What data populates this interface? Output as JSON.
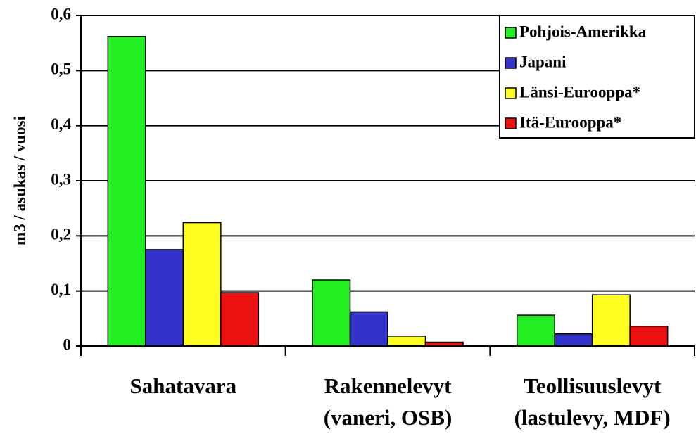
{
  "chart_data": {
    "type": "bar",
    "y_label": "m3 / asukas / vuosi",
    "categories": [
      [
        "Sahatavara"
      ],
      [
        "Rakennelevyt",
        "(vaneri, OSB)"
      ],
      [
        "Teollisuuslevyt",
        "(lastulevy, MDF)"
      ]
    ],
    "series": [
      {
        "name": "Pohjois-Amerikka",
        "color": "#22ee22",
        "values": [
          0.562,
          0.12,
          0.056
        ]
      },
      {
        "name": "Japani",
        "color": "#3333cc",
        "values": [
          0.175,
          0.062,
          0.022
        ]
      },
      {
        "name": "Länsi-Eurooppa*",
        "color": "#ffff22",
        "values": [
          0.224,
          0.018,
          0.093
        ]
      },
      {
        "name": "Itä-Eurooppa*",
        "color": "#ee1111",
        "values": [
          0.097,
          0.007,
          0.036
        ]
      }
    ],
    "ylim": [
      0,
      0.6
    ],
    "yticks": [
      0,
      {
        "value": 0.1,
        "label": "0,1"
      },
      {
        "value": 0.2,
        "label": "0,2"
      },
      {
        "value": 0.3,
        "label": "0,3"
      },
      {
        "value": 0.4,
        "label": "0,4"
      },
      {
        "value": 0.5,
        "label": "0,5"
      },
      {
        "value": 0.6,
        "label": "0,6"
      }
    ],
    "grid": true,
    "legend": "upper right"
  }
}
